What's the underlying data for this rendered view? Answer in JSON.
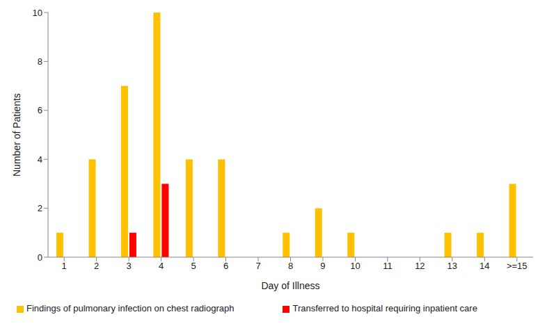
{
  "chart_data": {
    "type": "bar",
    "categories": [
      "1",
      "2",
      "3",
      "4",
      "5",
      "6",
      "7",
      "8",
      "9",
      "10",
      "11",
      "12",
      "13",
      "14",
      ">=15"
    ],
    "x_label": "Day of Illness",
    "y_label": "Number of Patients",
    "series": [
      {
        "name": "Findings of pulmonary infection on chest radiograph",
        "color": "#FFC000",
        "values": [
          1,
          4,
          7,
          10,
          4,
          4,
          0,
          1,
          2,
          1,
          0,
          0,
          1,
          1,
          3
        ]
      },
      {
        "name": "Transferred to hospital requiring inpatient care",
        "color": "#FF0000",
        "values": [
          0,
          0,
          1,
          3,
          0,
          0,
          0,
          0,
          0,
          0,
          0,
          0,
          0,
          0,
          0
        ]
      }
    ],
    "ylim": [
      0,
      10
    ],
    "yticks": [
      0,
      2,
      4,
      6,
      8,
      10
    ],
    "grid": false,
    "legend": "bottom"
  }
}
